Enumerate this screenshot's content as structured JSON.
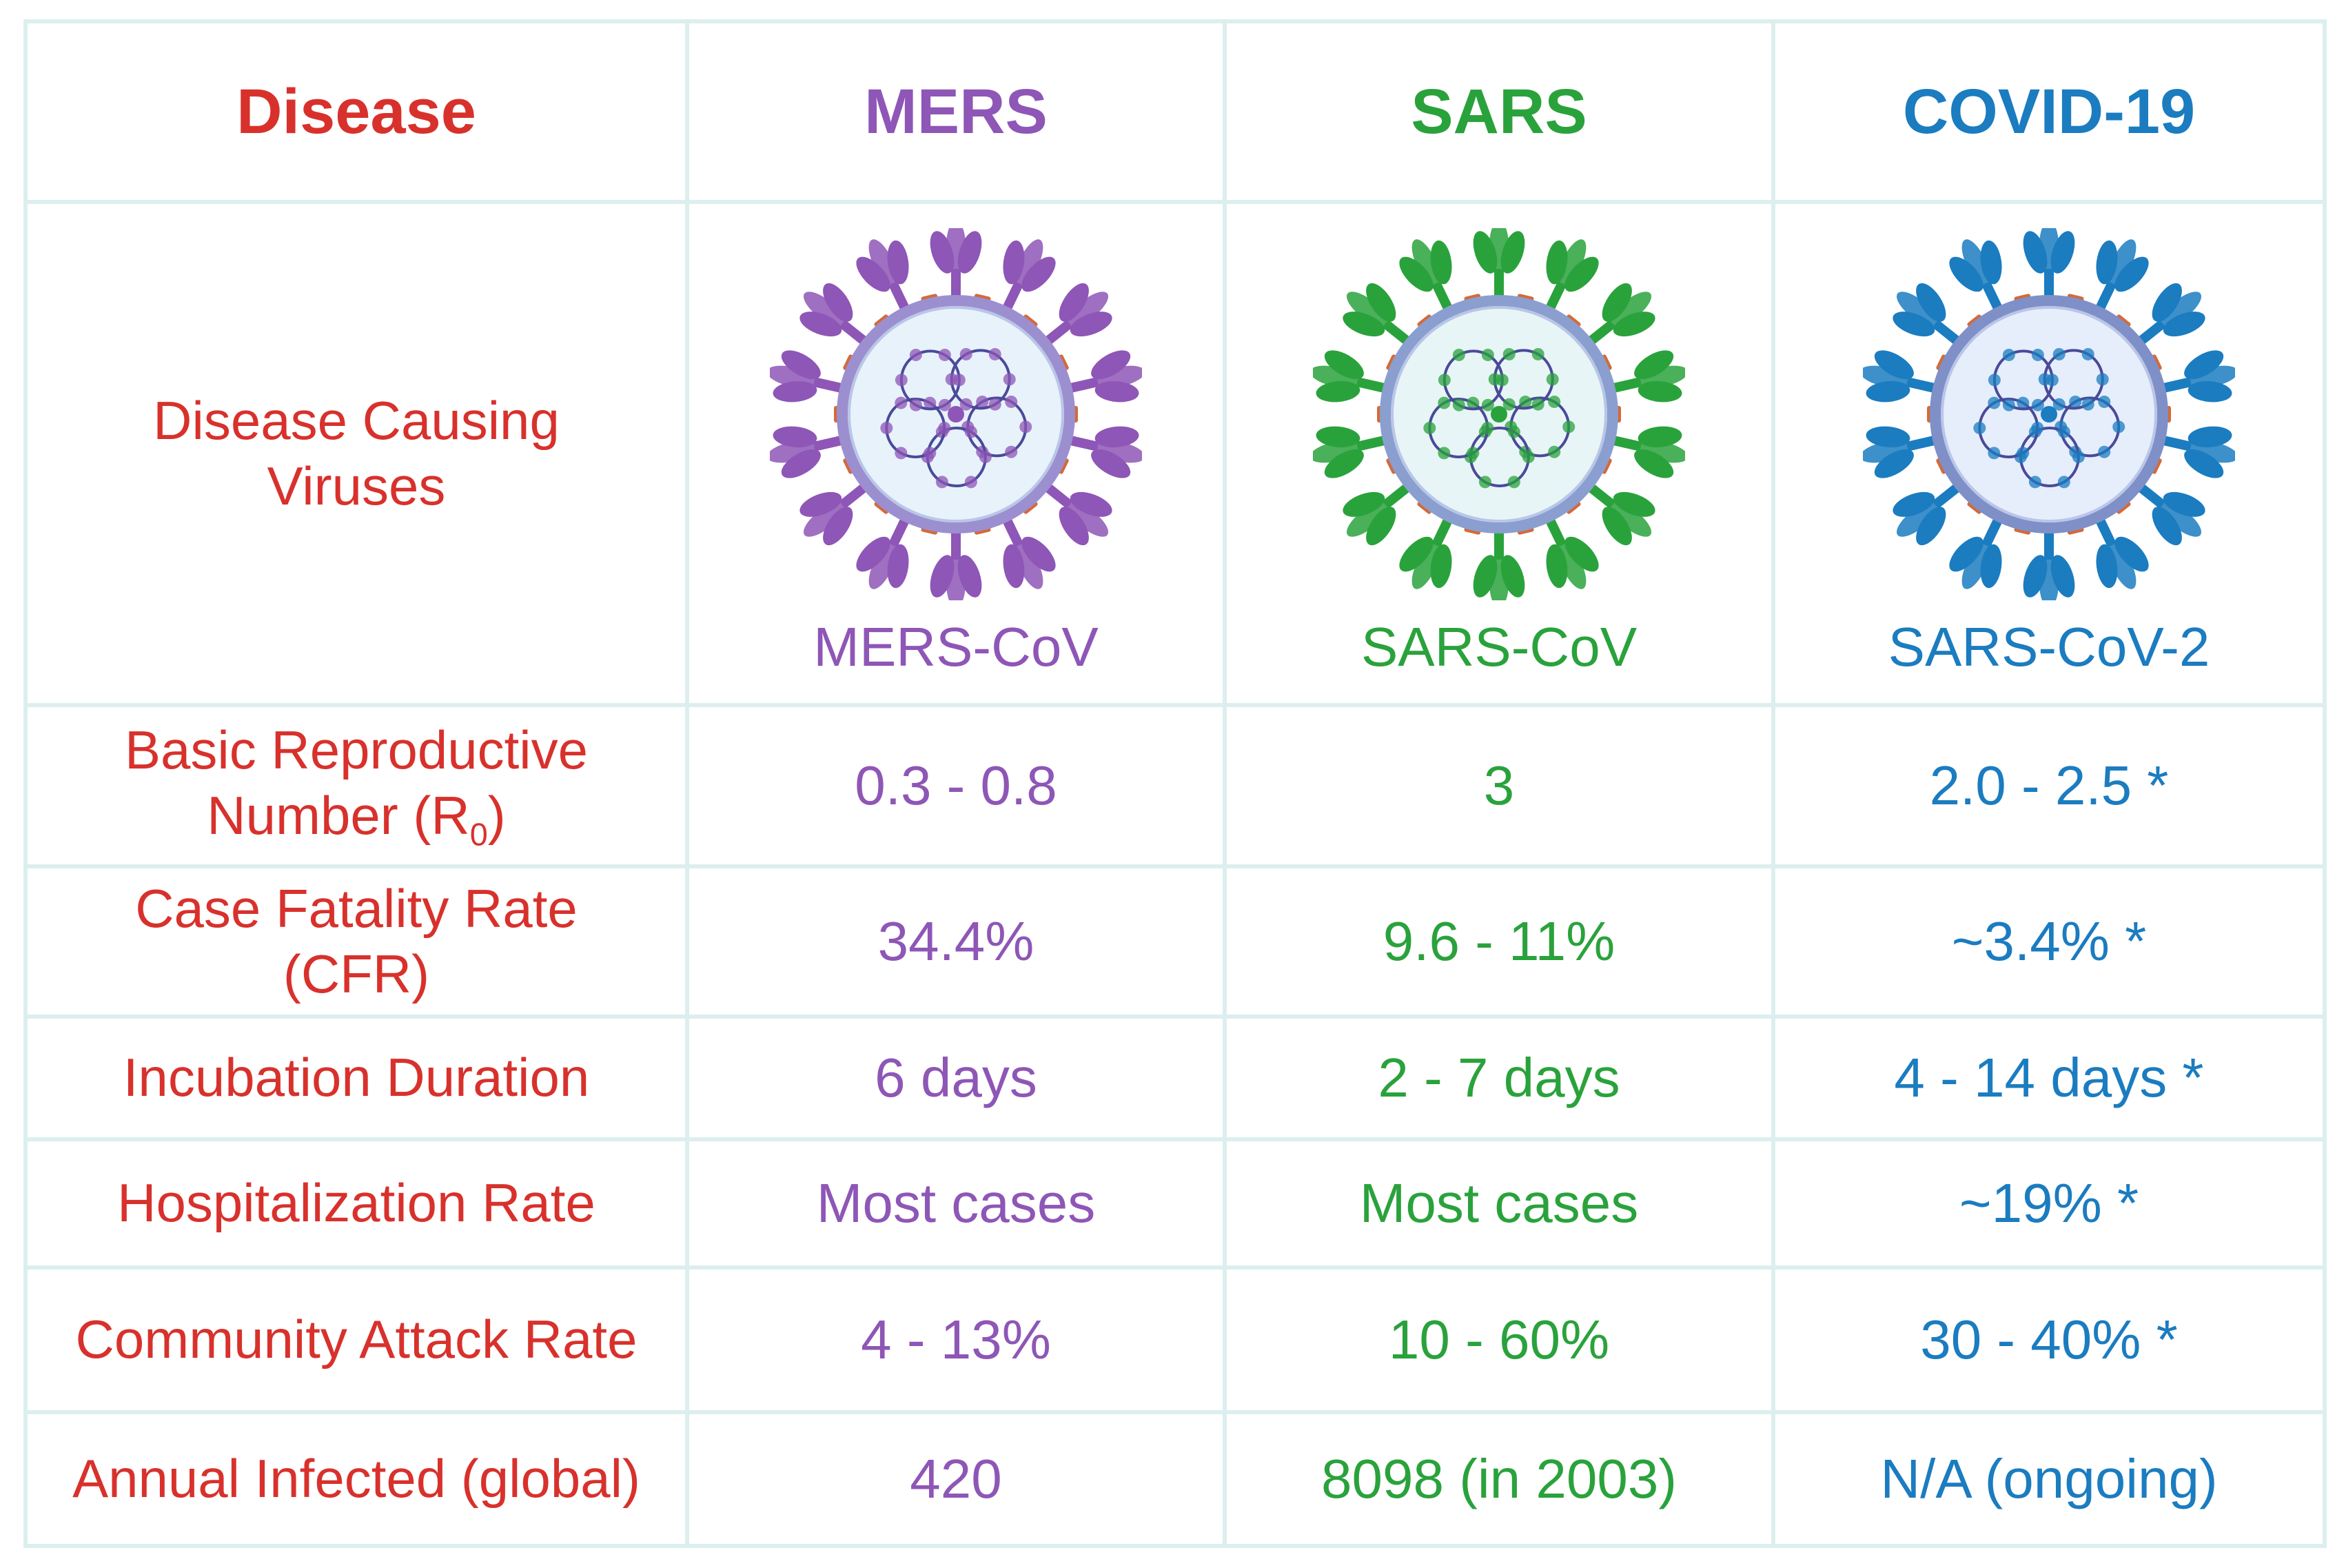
{
  "colors": {
    "red": "#d8312c",
    "mers": "#8e56b6",
    "sars": "#2aa23c",
    "covid": "#1b7cc0",
    "grid": "#dcefee"
  },
  "header": {
    "disease": "Disease",
    "mers": "MERS",
    "sars": "SARS",
    "covid": "COVID-19"
  },
  "rows": {
    "viruses": {
      "label_line1": "Disease Causing",
      "label_line2": "Viruses",
      "mers": "MERS-CoV",
      "sars": "SARS-CoV",
      "covid": "SARS-CoV-2"
    },
    "r0": {
      "label_line1": "Basic Reproductive",
      "label_line2": "Number (R",
      "label_sub": "0",
      "label_end": ")",
      "mers": "0.3 - 0.8",
      "sars": "3",
      "covid": "2.0 - 2.5 *"
    },
    "cfr": {
      "label_line1": "Case Fatality Rate",
      "label_line2": "(CFR)",
      "mers": "34.4%",
      "sars": "9.6 - 11%",
      "covid": "~3.4% *"
    },
    "incubation": {
      "label": "Incubation Duration",
      "mers": "6 days",
      "sars": "2 - 7 days",
      "covid": "4 - 14 days *"
    },
    "hospitalization": {
      "label": "Hospitalization Rate",
      "mers": "Most cases",
      "sars": "Most cases",
      "covid": "~19% *"
    },
    "attack": {
      "label": "Community Attack Rate",
      "mers": "4 - 13%",
      "sars": "10 - 60%",
      "covid": "30 - 40% *"
    },
    "annual": {
      "label": "Annual Infected (global)",
      "mers": "420",
      "sars": "8098 (in 2003)",
      "covid": "N/A (ongoing)"
    }
  },
  "icons": {
    "mers": "coronavirus-icon",
    "sars": "coronavirus-icon",
    "covid": "coronavirus-icon"
  }
}
